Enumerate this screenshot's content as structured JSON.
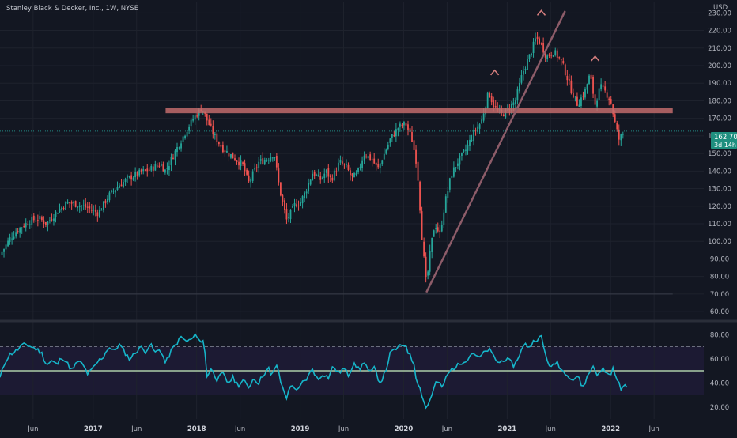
{
  "window": {
    "title": "Stanley Black & Decker, Inc., 1W, NYSE"
  },
  "header": {
    "currency": "USD"
  },
  "price_badge": {
    "value": "162.70",
    "countdown": "3d 14h"
  },
  "colors": {
    "background": "#131722",
    "up": "#26a69a",
    "down": "#ef5350",
    "rsi_line": "#16b5c9",
    "rsi_mid": "#c9f0c0",
    "resistance": "#c26b6b",
    "trendline": "#8d5c69",
    "peak_marker": "#d47d7d",
    "badge": "#1f8f7f",
    "grid": "#1e222d",
    "separator": "#2a2e39",
    "label_text": "#b2b5be"
  },
  "icons": [
    "peak-caret-icon"
  ],
  "chart_data": [
    {
      "type": "candlestick",
      "title": "Stanley Black & Decker, Inc., 1W, NYSE",
      "ylabel": "USD",
      "ylim": [
        56,
        236
      ],
      "yticks": [
        60,
        70,
        80,
        90,
        100,
        110,
        120,
        130,
        140,
        150,
        160,
        170,
        180,
        190,
        200,
        210,
        220,
        230
      ],
      "grid": true,
      "x_ticks": [
        {
          "label": "Jun",
          "x": 2016.42,
          "major": false
        },
        {
          "label": "2017",
          "x": 2017.0,
          "major": true
        },
        {
          "label": "Jun",
          "x": 2017.42,
          "major": false
        },
        {
          "label": "2018",
          "x": 2018.0,
          "major": true
        },
        {
          "label": "Jun",
          "x": 2018.42,
          "major": false
        },
        {
          "label": "2019",
          "x": 2019.0,
          "major": true
        },
        {
          "label": "Jun",
          "x": 2019.42,
          "major": false
        },
        {
          "label": "2020",
          "x": 2020.0,
          "major": true
        },
        {
          "label": "Jun",
          "x": 2020.42,
          "major": false
        },
        {
          "label": "2021",
          "x": 2021.0,
          "major": true
        },
        {
          "label": "Jun",
          "x": 2021.42,
          "major": false
        },
        {
          "label": "2022",
          "x": 2022.0,
          "major": true
        },
        {
          "label": "Jun",
          "x": 2022.42,
          "major": false
        }
      ],
      "xlim": [
        2016.1,
        2022.9
      ],
      "close_path": [
        [
          2016.1,
          92
        ],
        [
          2016.2,
          102
        ],
        [
          2016.3,
          108
        ],
        [
          2016.4,
          112
        ],
        [
          2016.48,
          113
        ],
        [
          2016.55,
          110
        ],
        [
          2016.65,
          117
        ],
        [
          2016.75,
          122
        ],
        [
          2016.85,
          121
        ],
        [
          2016.95,
          119
        ],
        [
          2017.05,
          116
        ],
        [
          2017.15,
          126
        ],
        [
          2017.25,
          132
        ],
        [
          2017.35,
          136
        ],
        [
          2017.45,
          139
        ],
        [
          2017.55,
          141
        ],
        [
          2017.65,
          144
        ],
        [
          2017.7,
          140
        ],
        [
          2017.8,
          152
        ],
        [
          2017.9,
          163
        ],
        [
          2017.97,
          170
        ],
        [
          2018.05,
          176
        ],
        [
          2018.1,
          169
        ],
        [
          2018.17,
          160
        ],
        [
          2018.25,
          153
        ],
        [
          2018.35,
          148
        ],
        [
          2018.45,
          143
        ],
        [
          2018.5,
          133
        ],
        [
          2018.6,
          145
        ],
        [
          2018.65,
          146
        ],
        [
          2018.7,
          148
        ],
        [
          2018.75,
          150
        ],
        [
          2018.8,
          130
        ],
        [
          2018.87,
          112
        ],
        [
          2018.95,
          121
        ],
        [
          2019.0,
          122
        ],
        [
          2019.05,
          128
        ],
        [
          2019.12,
          139
        ],
        [
          2019.2,
          135
        ],
        [
          2019.25,
          140
        ],
        [
          2019.3,
          135
        ],
        [
          2019.38,
          145
        ],
        [
          2019.45,
          142
        ],
        [
          2019.5,
          136
        ],
        [
          2019.55,
          138
        ],
        [
          2019.62,
          150
        ],
        [
          2019.7,
          146
        ],
        [
          2019.75,
          141
        ],
        [
          2019.8,
          148
        ],
        [
          2019.87,
          158
        ],
        [
          2019.95,
          165
        ],
        [
          2020.02,
          167
        ],
        [
          2020.08,
          158
        ],
        [
          2020.13,
          143
        ],
        [
          2020.18,
          100
        ],
        [
          2020.22,
          75
        ],
        [
          2020.26,
          96
        ],
        [
          2020.3,
          110
        ],
        [
          2020.35,
          104
        ],
        [
          2020.4,
          122
        ],
        [
          2020.46,
          138
        ],
        [
          2020.52,
          145
        ],
        [
          2020.6,
          152
        ],
        [
          2020.68,
          162
        ],
        [
          2020.75,
          168
        ],
        [
          2020.82,
          185
        ],
        [
          2020.88,
          176
        ],
        [
          2020.95,
          172
        ],
        [
          2021.02,
          176
        ],
        [
          2021.08,
          180
        ],
        [
          2021.15,
          196
        ],
        [
          2021.22,
          206
        ],
        [
          2021.28,
          216
        ],
        [
          2021.33,
          212
        ],
        [
          2021.38,
          205
        ],
        [
          2021.45,
          208
        ],
        [
          2021.52,
          203
        ],
        [
          2021.57,
          195
        ],
        [
          2021.62,
          186
        ],
        [
          2021.68,
          178
        ],
        [
          2021.75,
          185
        ],
        [
          2021.8,
          195
        ],
        [
          2021.85,
          178
        ],
        [
          2021.9,
          188
        ],
        [
          2021.95,
          185
        ],
        [
          2022.0,
          180
        ],
        [
          2022.04,
          168
        ],
        [
          2022.08,
          158
        ],
        [
          2022.13,
          162
        ]
      ],
      "last_price": 162.7,
      "annotations": [
        {
          "type": "horizontal_line",
          "label": "resistance",
          "y": 174.5,
          "x": [
            2017.7,
            2022.6
          ]
        },
        {
          "type": "trendline",
          "from": [
            2020.22,
            71
          ],
          "to": [
            2021.56,
            231
          ]
        },
        {
          "type": "horizontal_line",
          "label": "low",
          "y": 70,
          "x": [
            2016.1,
            2022.6
          ]
        },
        {
          "type": "peak_marker",
          "x": 2020.88,
          "y": 196
        },
        {
          "type": "peak_marker",
          "x": 2021.33,
          "y": 230
        },
        {
          "type": "peak_marker",
          "x": 2021.85,
          "y": 204
        }
      ]
    },
    {
      "type": "line",
      "ylim": [
        10,
        90
      ],
      "yticks": [
        20,
        40,
        60,
        80
      ],
      "grid": true,
      "reference_lines": [
        70,
        50,
        30
      ],
      "xlim": [
        2016.1,
        2022.9
      ],
      "values_path": [
        [
          2016.1,
          44
        ],
        [
          2016.15,
          58
        ],
        [
          2016.2,
          64
        ],
        [
          2016.25,
          66
        ],
        [
          2016.3,
          70
        ],
        [
          2016.35,
          72
        ],
        [
          2016.4,
          70
        ],
        [
          2016.45,
          68
        ],
        [
          2016.5,
          65
        ],
        [
          2016.55,
          55
        ],
        [
          2016.6,
          58
        ],
        [
          2016.65,
          55
        ],
        [
          2016.7,
          62
        ],
        [
          2016.75,
          56
        ],
        [
          2016.8,
          50
        ],
        [
          2016.85,
          58
        ],
        [
          2016.9,
          55
        ],
        [
          2016.95,
          47
        ],
        [
          2017.0,
          52
        ],
        [
          2017.05,
          58
        ],
        [
          2017.1,
          62
        ],
        [
          2017.15,
          70
        ],
        [
          2017.2,
          66
        ],
        [
          2017.25,
          72
        ],
        [
          2017.3,
          66
        ],
        [
          2017.35,
          60
        ],
        [
          2017.4,
          64
        ],
        [
          2017.45,
          70
        ],
        [
          2017.5,
          66
        ],
        [
          2017.55,
          72
        ],
        [
          2017.6,
          65
        ],
        [
          2017.65,
          68
        ],
        [
          2017.7,
          56
        ],
        [
          2017.75,
          66
        ],
        [
          2017.8,
          72
        ],
        [
          2017.85,
          78
        ],
        [
          2017.9,
          74
        ],
        [
          2017.95,
          76
        ],
        [
          2018.0,
          80
        ],
        [
          2018.05,
          72
        ],
        [
          2018.07,
          77
        ],
        [
          2018.1,
          46
        ],
        [
          2018.15,
          52
        ],
        [
          2018.2,
          42
        ],
        [
          2018.25,
          48
        ],
        [
          2018.3,
          40
        ],
        [
          2018.35,
          44
        ],
        [
          2018.4,
          38
        ],
        [
          2018.45,
          42
        ],
        [
          2018.5,
          36
        ],
        [
          2018.55,
          44
        ],
        [
          2018.6,
          40
        ],
        [
          2018.65,
          48
        ],
        [
          2018.7,
          52
        ],
        [
          2018.72,
          44
        ],
        [
          2018.77,
          56
        ],
        [
          2018.82,
          38
        ],
        [
          2018.87,
          28
        ],
        [
          2018.92,
          40
        ],
        [
          2018.97,
          32
        ],
        [
          2019.02,
          40
        ],
        [
          2019.07,
          44
        ],
        [
          2019.12,
          52
        ],
        [
          2019.17,
          42
        ],
        [
          2019.22,
          48
        ],
        [
          2019.27,
          44
        ],
        [
          2019.32,
          54
        ],
        [
          2019.37,
          48
        ],
        [
          2019.42,
          52
        ],
        [
          2019.47,
          46
        ],
        [
          2019.52,
          58
        ],
        [
          2019.57,
          50
        ],
        [
          2019.62,
          58
        ],
        [
          2019.67,
          48
        ],
        [
          2019.72,
          52
        ],
        [
          2019.77,
          40
        ],
        [
          2019.82,
          48
        ],
        [
          2019.87,
          64
        ],
        [
          2019.92,
          68
        ],
        [
          2019.97,
          70
        ],
        [
          2020.02,
          72
        ],
        [
          2020.05,
          64
        ],
        [
          2020.1,
          56
        ],
        [
          2020.12,
          45
        ],
        [
          2020.17,
          32
        ],
        [
          2020.22,
          18
        ],
        [
          2020.27,
          30
        ],
        [
          2020.32,
          42
        ],
        [
          2020.37,
          36
        ],
        [
          2020.42,
          46
        ],
        [
          2020.47,
          52
        ],
        [
          2020.52,
          54
        ],
        [
          2020.57,
          58
        ],
        [
          2020.62,
          60
        ],
        [
          2020.67,
          66
        ],
        [
          2020.72,
          60
        ],
        [
          2020.77,
          64
        ],
        [
          2020.82,
          68
        ],
        [
          2020.87,
          62
        ],
        [
          2020.92,
          56
        ],
        [
          2020.97,
          60
        ],
        [
          2021.02,
          58
        ],
        [
          2021.07,
          54
        ],
        [
          2021.12,
          64
        ],
        [
          2021.17,
          72
        ],
        [
          2021.22,
          70
        ],
        [
          2021.27,
          76
        ],
        [
          2021.33,
          78
        ],
        [
          2021.38,
          60
        ],
        [
          2021.43,
          52
        ],
        [
          2021.48,
          58
        ],
        [
          2021.53,
          50
        ],
        [
          2021.58,
          48
        ],
        [
          2021.63,
          42
        ],
        [
          2021.68,
          46
        ],
        [
          2021.73,
          36
        ],
        [
          2021.78,
          46
        ],
        [
          2021.83,
          54
        ],
        [
          2021.88,
          46
        ],
        [
          2021.93,
          52
        ],
        [
          2021.98,
          46
        ],
        [
          2022.03,
          52
        ],
        [
          2022.06,
          42
        ],
        [
          2022.1,
          36
        ],
        [
          2022.16,
          37
        ]
      ]
    }
  ]
}
